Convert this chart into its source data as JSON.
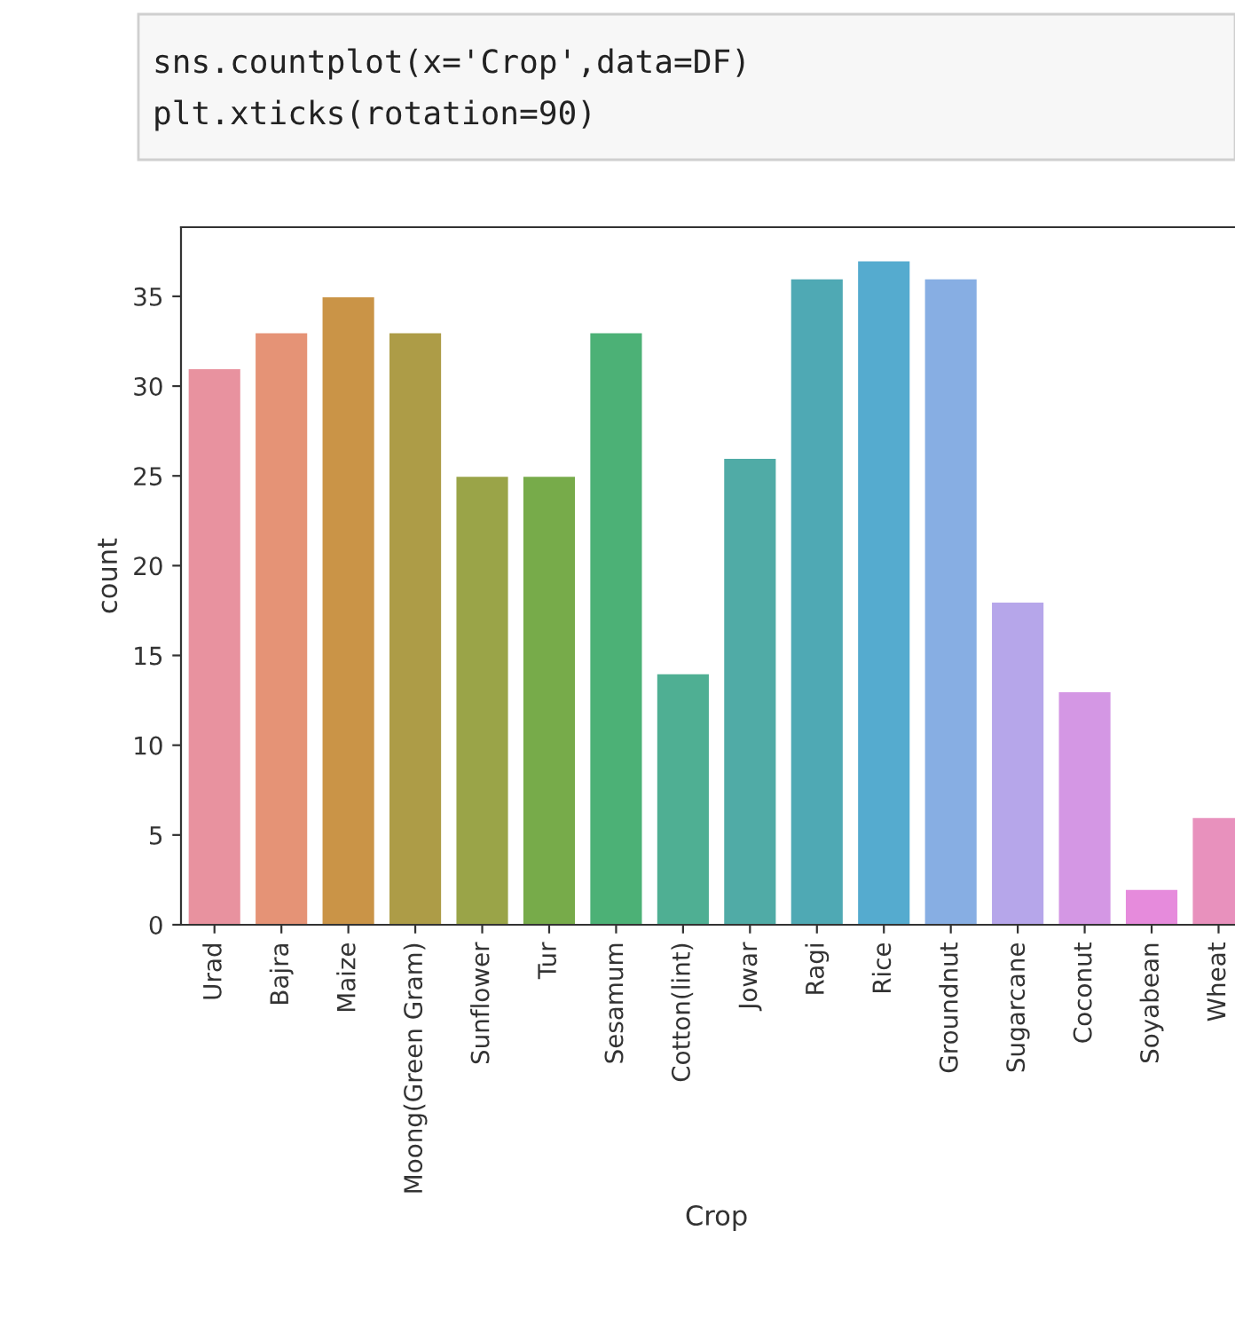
{
  "chart_data": {
    "type": "bar",
    "xlabel": "Crop",
    "ylabel": "count",
    "categories": [
      "Urad",
      "Bajra",
      "Maize",
      "Moong(Green Gram)",
      "Sunflower",
      "Tur",
      "Sesamum",
      "Cotton(lint)",
      "Jowar",
      "Ragi",
      "Rice",
      "Groundnut",
      "Sugarcane",
      "Coconut",
      "Soyabean",
      "Wheat"
    ],
    "values": [
      31,
      33,
      35,
      33,
      25,
      25,
      33,
      14,
      26,
      36,
      37,
      36,
      18,
      13,
      2,
      6
    ],
    "colors": [
      "#e8929f",
      "#e59376",
      "#ca9447",
      "#ad9c47",
      "#9aa448",
      "#77ab4a",
      "#4cb176",
      "#4faf93",
      "#50aba6",
      "#4fa9b4",
      "#55abcf",
      "#87aee3",
      "#b6a6ea",
      "#d497e4",
      "#e68bdc",
      "#e891bd"
    ],
    "ylim": [
      0,
      38.85
    ],
    "yticks": [
      0,
      5,
      10,
      15,
      20,
      25,
      30,
      35
    ],
    "grid": false,
    "legend": false,
    "annotations": [
      "sns.countplot(x='Crop',data=DF)",
      "plt.xticks(rotation=90)"
    ]
  }
}
